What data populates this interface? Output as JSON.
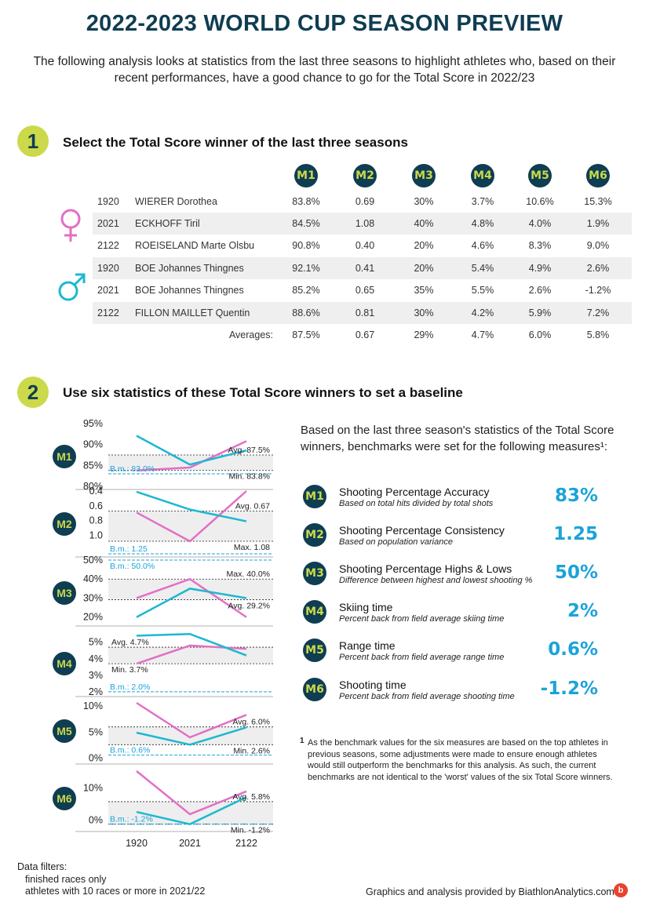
{
  "header": {
    "title": "2022-2023 WORLD CUP SEASON PREVIEW",
    "intro": "The following analysis looks at statistics from the last three seasons to highlight athletes who, based on their recent performances, have a good chance to go for the Total Score in 2022/23"
  },
  "section1": {
    "number": "1",
    "title": "Select the Total Score winner of the last three seasons",
    "columns": [
      "M1",
      "M2",
      "M3",
      "M4",
      "M5",
      "M6"
    ],
    "rows": [
      {
        "season": "1920",
        "name": "WIERER Dorothea",
        "values": [
          "83.8%",
          "0.69",
          "30%",
          "3.7%",
          "10.6%",
          "15.3%"
        ]
      },
      {
        "season": "2021",
        "name": "ECKHOFF Tiril",
        "values": [
          "84.5%",
          "1.08",
          "40%",
          "4.8%",
          "4.0%",
          "1.9%"
        ]
      },
      {
        "season": "2122",
        "name": "ROEISELAND Marte Olsbu",
        "values": [
          "90.8%",
          "0.40",
          "20%",
          "4.6%",
          "8.3%",
          "9.0%"
        ]
      },
      {
        "season": "1920",
        "name": "BOE Johannes Thingnes",
        "values": [
          "92.1%",
          "0.41",
          "20%",
          "5.4%",
          "4.9%",
          "2.6%"
        ]
      },
      {
        "season": "2021",
        "name": "BOE Johannes Thingnes",
        "values": [
          "85.2%",
          "0.65",
          "35%",
          "5.5%",
          "2.6%",
          "-1.2%"
        ]
      },
      {
        "season": "2122",
        "name": "FILLON MAILLET Quentin",
        "values": [
          "88.6%",
          "0.81",
          "30%",
          "4.2%",
          "5.9%",
          "7.2%"
        ]
      }
    ],
    "averages_label": "Averages:",
    "averages": [
      "87.5%",
      "0.67",
      "29%",
      "4.7%",
      "6.0%",
      "5.8%"
    ],
    "female_icon": "female-symbol-icon",
    "male_icon": "male-symbol-icon"
  },
  "section2": {
    "number": "2",
    "title": "Use six statistics of these Total Score winners to set a baseline",
    "intro": "Based on the last three season's statistics of the Total Score winners, benchmarks were set for the following measures¹:",
    "measures": [
      {
        "badge": "M1",
        "name": "Shooting Percentage Accuracy",
        "desc": "Based on total hits divided by total shots",
        "benchmark": "83%"
      },
      {
        "badge": "M2",
        "name": "Shooting Percentage Consistency",
        "desc": "Based on population variance",
        "benchmark": "1.25"
      },
      {
        "badge": "M3",
        "name": "Shooting Percentage Highs & Lows",
        "desc": "Difference between highest and lowest shooting %",
        "benchmark": "50%"
      },
      {
        "badge": "M4",
        "name": "Skiing time",
        "desc": "Percent back from field average skiing time",
        "benchmark": "2%"
      },
      {
        "badge": "M5",
        "name": "Range time",
        "desc": "Percent back from field average range time",
        "benchmark": "0.6%"
      },
      {
        "badge": "M6",
        "name": "Shooting time",
        "desc": "Percent back from field average shooting time",
        "benchmark": "-1.2%"
      }
    ],
    "footnote_mark": "1",
    "footnote": "As the benchmark values for the six measures are based on the top athletes in previous seasons, some adjustments were made to ensure enough athletes would still outperform the benchmarks for this analysis. As such, the current benchmarks are not identical to the 'worst' values of the six Total Score winners."
  },
  "colors": {
    "female": "#e36fc6",
    "male": "#1cb8d2",
    "navy": "#0f3d52",
    "lime": "#cbd94a",
    "accent": "#1ba3d9"
  },
  "chart_data": {
    "type": "line",
    "x": [
      "1920",
      "2021",
      "2122"
    ],
    "charts": [
      {
        "badge": "M1",
        "ylim": [
          80,
          95
        ],
        "reversed": false,
        "ticks": [
          "95%",
          "90%",
          "85%",
          "80%"
        ],
        "tick_values": [
          95,
          90,
          85,
          80
        ],
        "female": [
          83.8,
          84.5,
          90.8
        ],
        "male": [
          92.1,
          85.2,
          88.6
        ],
        "avg": 87.5,
        "avg_label": "Avg. 87.5%",
        "limit": 83.8,
        "limit_label": "Min. 83.8%",
        "benchmark": 83.0,
        "benchmark_label": "B.m.: 83.0%"
      },
      {
        "badge": "M2",
        "ylim": [
          0.4,
          1.25
        ],
        "reversed": true,
        "ticks": [
          "0.4",
          "0.6",
          "0.8",
          "1.0"
        ],
        "tick_values": [
          0.4,
          0.6,
          0.8,
          1.0
        ],
        "female": [
          0.69,
          1.08,
          0.4
        ],
        "male": [
          0.41,
          0.65,
          0.81
        ],
        "avg": 0.67,
        "avg_label": "Avg. 0.67",
        "limit": 1.08,
        "limit_label": "Max. 1.08",
        "benchmark": 1.25,
        "benchmark_label": "B.m.: 1.25"
      },
      {
        "badge": "M3",
        "ylim": [
          17,
          50
        ],
        "reversed": false,
        "ticks": [
          "50%",
          "40%",
          "30%",
          "20%"
        ],
        "tick_values": [
          50,
          40,
          30,
          20
        ],
        "female": [
          30,
          40,
          20
        ],
        "male": [
          20,
          35,
          30
        ],
        "avg": 29.2,
        "avg_label": "Avg. 29.2%",
        "limit": 40,
        "limit_label": "Max. 40.0%",
        "benchmark": 50,
        "benchmark_label": "B.m.: 50.0%"
      },
      {
        "badge": "M4",
        "ylim": [
          1.9,
          5.7
        ],
        "reversed": false,
        "ticks": [
          "5%",
          "4%",
          "3%",
          "2%"
        ],
        "tick_values": [
          5,
          4,
          3,
          2
        ],
        "female": [
          3.7,
          4.8,
          4.6
        ],
        "male": [
          5.4,
          5.5,
          4.2
        ],
        "avg": 4.7,
        "avg_label": "Avg. 4.7%",
        "limit": 3.7,
        "limit_label": "Min. 3.7%",
        "benchmark": 2.0,
        "benchmark_label": "B.m.: 2.0%"
      },
      {
        "badge": "M5",
        "ylim": [
          -0.5,
          11.5
        ],
        "reversed": false,
        "ticks": [
          "10%",
          "5%",
          "0%"
        ],
        "tick_values": [
          10,
          5,
          0
        ],
        "female": [
          10.6,
          4.0,
          8.3
        ],
        "male": [
          4.9,
          2.6,
          5.9
        ],
        "avg": 6.0,
        "avg_label": "Avg. 6.0%",
        "limit": 2.6,
        "limit_label": "Min. 2.6%",
        "benchmark": 0.6,
        "benchmark_label": "B.m.: 0.6%"
      },
      {
        "badge": "M6",
        "ylim": [
          -2.5,
          17
        ],
        "reversed": false,
        "ticks": [
          "10%",
          "0%"
        ],
        "tick_values": [
          10,
          0
        ],
        "female": [
          15.3,
          1.9,
          9.0
        ],
        "male": [
          2.6,
          -1.2,
          7.2
        ],
        "avg": 5.8,
        "avg_label": "Avg. 5.8%",
        "limit": -1.2,
        "limit_label": "Min. -1.2%",
        "benchmark": -1.2,
        "benchmark_label": "B.m.: -1.2%"
      }
    ]
  },
  "footer": {
    "filters_title": "Data filters:",
    "filters": [
      "finished races only",
      "athletes with 10 races or more in 2021/22"
    ],
    "credit": "Graphics and analysis provided by BiathlonAnalytics.com",
    "logo": "b"
  }
}
